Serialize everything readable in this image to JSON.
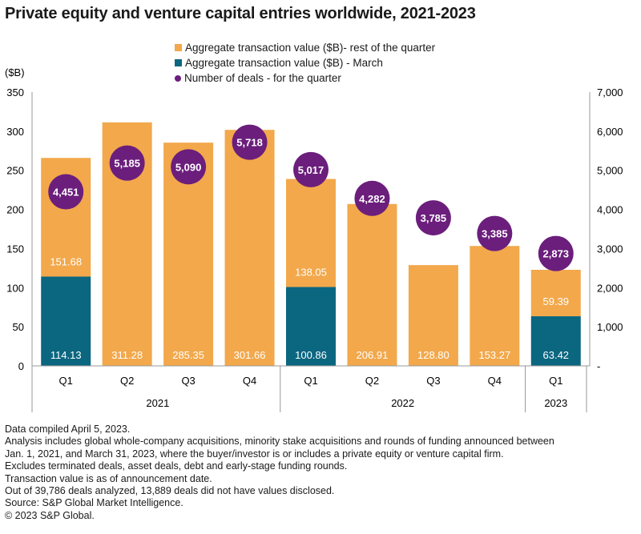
{
  "colors": {
    "rest": "#F2A84B",
    "march": "#0B6680",
    "deals": "#6B1E7C",
    "axis": "#999999"
  },
  "chart_data": {
    "type": "bar",
    "title": "Private equity and venture capital entries worldwide, 2021-2023",
    "ylabel": "($B)",
    "ylim": [
      0,
      350
    ],
    "y2lim": [
      0,
      7000
    ],
    "yticks": [
      "0",
      "50",
      "100",
      "150",
      "200",
      "250",
      "300",
      "350"
    ],
    "y2ticks": [
      "-",
      "1,000",
      "2,000",
      "3,000",
      "4,000",
      "5,000",
      "6,000",
      "7,000"
    ],
    "categories": [
      "Q1",
      "Q2",
      "Q3",
      "Q4",
      "Q1",
      "Q2",
      "Q3",
      "Q4",
      "Q1"
    ],
    "years": [
      {
        "label": "2021",
        "span": 4
      },
      {
        "label": "2022",
        "span": 4
      },
      {
        "label": "2023",
        "span": 1
      }
    ],
    "legend": [
      "Aggregate transaction value ($B)- rest of the quarter",
      "Aggregate transaction value ($B) - March",
      "Number of deals - for the quarter"
    ],
    "series": [
      {
        "name": "Aggregate transaction value ($B) - March",
        "values": [
          114.13,
          null,
          null,
          null,
          100.86,
          null,
          null,
          null,
          63.42
        ],
        "labels": [
          "114.13",
          "",
          "",
          "",
          "100.86",
          "",
          "",
          "",
          "63.42"
        ]
      },
      {
        "name": "Aggregate transaction value ($B)- rest of the quarter",
        "values": [
          151.68,
          311.28,
          285.35,
          301.66,
          138.05,
          206.91,
          128.8,
          153.27,
          59.39
        ],
        "labels": [
          "151.68",
          "311.28",
          "285.35",
          "301.66",
          "138.05",
          "206.91",
          "128.80",
          "153.27",
          "59.39"
        ]
      },
      {
        "name": "Number of deals - for the quarter",
        "axis": "right",
        "values": [
          4451,
          5185,
          5090,
          5718,
          5017,
          4282,
          3785,
          3385,
          2873
        ],
        "labels": [
          "4,451",
          "5,185",
          "5,090",
          "5,718",
          "5,017",
          "4,282",
          "3,785",
          "3,385",
          "2,873"
        ]
      }
    ]
  },
  "notes": [
    "Data compiled April 5, 2023.",
    "Analysis includes global whole-company acquisitions, minority stake acquisitions and rounds of funding announced between",
    "Jan. 1, 2021, and March 31, 2023, where the buyer/investor is or includes a private equity or venture capital firm.",
    "Excludes terminated deals, asset deals, debt and early-stage funding rounds.",
    "Transaction value is as of announcement date.",
    "Out of 39,786 deals analyzed, 13,889 deals did not have values disclosed.",
    "Source: S&P Global Market Intelligence.",
    "© 2023 S&P Global."
  ]
}
